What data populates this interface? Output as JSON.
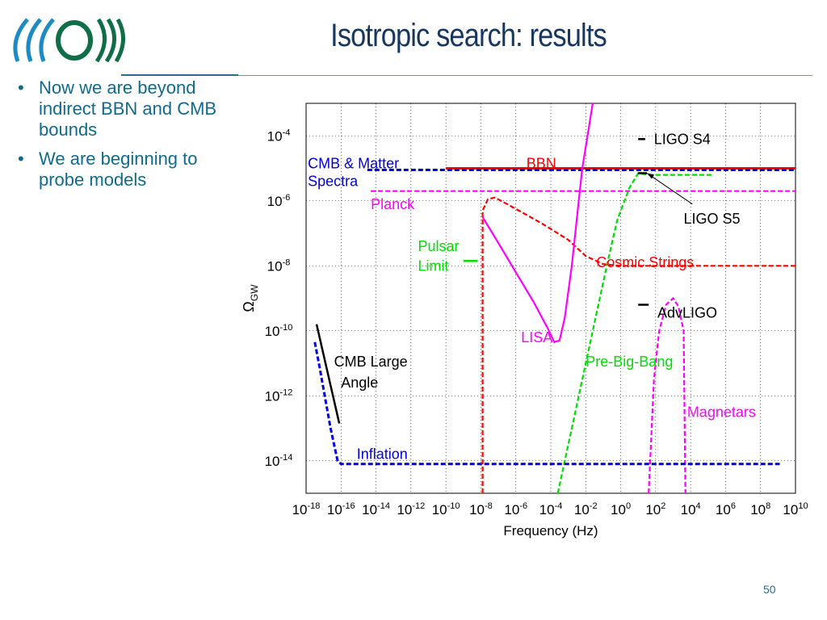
{
  "slide": {
    "title": "Isotropic search: results",
    "page_number": "50",
    "bullets": [
      "Now we are beyond indirect BBN and CMB bounds",
      "We are beginning to probe models"
    ]
  },
  "colors": {
    "title": "#17375e",
    "bullet_text": "#0f6a8d",
    "red": "#ff0000",
    "blue": "#0000dd",
    "magenta": "#ff00ff",
    "green": "#00dd00",
    "black": "#000000"
  },
  "chart_data": {
    "type": "line",
    "title": "",
    "xlabel": "Frequency (Hz)",
    "ylabel": "Ω_GW",
    "x_scale": "log10",
    "y_scale": "log10",
    "xlim_log10": [
      -18,
      10
    ],
    "ylim_log10": [
      -15,
      -3
    ],
    "grid": true,
    "x_ticks_log10": [
      -18,
      -16,
      -14,
      -12,
      -10,
      -8,
      -6,
      -4,
      -2,
      0,
      2,
      4,
      6,
      8,
      10
    ],
    "y_ticks_log10": [
      -14,
      -12,
      -10,
      -8,
      -6,
      -4
    ],
    "series": [
      {
        "name": "BBN",
        "color": "#ff0000",
        "style": "solid",
        "points": [
          [
            -10,
            -5.0
          ],
          [
            10,
            -5.0
          ]
        ]
      },
      {
        "name": "CMB & Matter Spectra",
        "color": "#0000dd",
        "style": "dashed",
        "points": [
          [
            -14.5,
            -5.05
          ],
          [
            10,
            -5.05
          ]
        ]
      },
      {
        "name": "Planck",
        "color": "#ff00ff",
        "style": "dashed",
        "points": [
          [
            -14.3,
            -5.7
          ],
          [
            10,
            -5.7
          ]
        ]
      },
      {
        "name": "Cosmic Strings",
        "color": "#ff0000",
        "style": "dashed",
        "points": [
          [
            -7.9,
            -15
          ],
          [
            -7.9,
            -6.3
          ],
          [
            -7.6,
            -5.95
          ],
          [
            -7.2,
            -5.9
          ],
          [
            -6.5,
            -6.1
          ],
          [
            -4.5,
            -6.7
          ],
          [
            -3.0,
            -7.2
          ],
          [
            -2.0,
            -7.7
          ],
          [
            -1.0,
            -7.95
          ],
          [
            0,
            -8.0
          ],
          [
            10,
            -8.0
          ]
        ]
      },
      {
        "name": "LISA",
        "color": "#ff00ff",
        "style": "solid",
        "points": [
          [
            -7.9,
            -6.5
          ],
          [
            -7.0,
            -7.3
          ],
          [
            -6.0,
            -8.2
          ],
          [
            -5.0,
            -9.1
          ],
          [
            -4.2,
            -9.9
          ],
          [
            -3.8,
            -10.35
          ],
          [
            -3.5,
            -10.3
          ],
          [
            -3.2,
            -9.6
          ],
          [
            -2.8,
            -8.0
          ],
          [
            -2.4,
            -6.0
          ],
          [
            -2.2,
            -5.0
          ],
          [
            -1.9,
            -4.0
          ],
          [
            -1.6,
            -3.0
          ]
        ]
      },
      {
        "name": "Pre-Big-Bang",
        "color": "#00dd00",
        "style": "dashed",
        "points": [
          [
            -3.6,
            -15
          ],
          [
            -2.0,
            -11.0
          ],
          [
            -0.8,
            -8.0
          ],
          [
            -0.2,
            -6.6
          ],
          [
            0.5,
            -5.6
          ],
          [
            1.0,
            -5.15
          ],
          [
            1.6,
            -5.2
          ],
          [
            2.2,
            -5.2
          ],
          [
            5.3,
            -5.2
          ]
        ]
      },
      {
        "name": "AdvLIGO",
        "color": "#ff00ff",
        "style": "dashed",
        "points": [
          [
            1.6,
            -15
          ],
          [
            1.9,
            -11.5
          ],
          [
            2.2,
            -10.0
          ],
          [
            2.6,
            -9.2
          ],
          [
            3.0,
            -9.0
          ],
          [
            3.3,
            -9.25
          ],
          [
            3.6,
            -10.0
          ],
          [
            3.7,
            -15
          ]
        ]
      },
      {
        "name": "CMB Large Angle",
        "color": "#0000dd",
        "style": "dashed",
        "points": [
          [
            -17.5,
            -10.35
          ],
          [
            -17.2,
            -11.2
          ],
          [
            -16.6,
            -13.0
          ],
          [
            -16.2,
            -14.0
          ],
          [
            -16.0,
            -14.1
          ],
          [
            9.1,
            -14.1
          ]
        ]
      },
      {
        "name": "CMB Large Angle bound",
        "color": "#000000",
        "style": "solid",
        "points": [
          [
            -17.4,
            -9.8
          ],
          [
            -16.1,
            -12.85
          ]
        ]
      },
      {
        "name": "LIGO S4 marker",
        "color": "#000000",
        "style": "solid",
        "points": [
          [
            1.0,
            -4.1
          ],
          [
            1.4,
            -4.1
          ]
        ]
      },
      {
        "name": "LIGO S5 marker",
        "color": "#000000",
        "style": "solid",
        "points": [
          [
            1.0,
            -5.15
          ],
          [
            1.5,
            -5.15
          ]
        ]
      },
      {
        "name": "AdvLIGO marker",
        "color": "#000000",
        "style": "solid",
        "points": [
          [
            1.0,
            -9.2
          ],
          [
            1.6,
            -9.2
          ]
        ]
      },
      {
        "name": "Pulsar Limit marker",
        "color": "#00dd00",
        "style": "solid",
        "points": [
          [
            -9.0,
            -7.85
          ],
          [
            -8.2,
            -7.85
          ]
        ]
      }
    ],
    "annotations": [
      {
        "text": "LIGO S4",
        "color": "#000000",
        "x": 1.9,
        "y": -4.1
      },
      {
        "text": "BBN",
        "color": "#ff0000",
        "x": -5.4,
        "y": -4.85
      },
      {
        "text": "CMB & Matter",
        "color": "#0000dd",
        "x": -17.9,
        "y": -4.85
      },
      {
        "text": "Spectra",
        "color": "#0000dd",
        "x": -17.9,
        "y": -5.4
      },
      {
        "text": "Planck",
        "color": "#ff00ff",
        "x": -14.3,
        "y": -6.1
      },
      {
        "text": "LIGO S5",
        "color": "#000000",
        "x": 3.6,
        "y": -6.55
      },
      {
        "text": "Pulsar",
        "color": "#00dd00",
        "x": -11.6,
        "y": -7.4
      },
      {
        "text": "Limit",
        "color": "#00dd00",
        "x": -11.6,
        "y": -8.0
      },
      {
        "text": "Cosmic   Strings",
        "color": "#ff0000",
        "x": -1.4,
        "y": -7.9
      },
      {
        "text": "AdvLIGO",
        "color": "#000000",
        "x": 2.1,
        "y": -9.45
      },
      {
        "text": "LISA",
        "color": "#ff00ff",
        "x": -5.7,
        "y": -10.2
      },
      {
        "text": "Pre-Big-Bang",
        "color": "#00dd00",
        "x": -2.0,
        "y": -10.95
      },
      {
        "text": "CMB Large",
        "color": "#000000",
        "x": -16.4,
        "y": -10.95
      },
      {
        "text": "Angle",
        "color": "#000000",
        "x": -16.0,
        "y": -11.6
      },
      {
        "text": "Magnetars",
        "color": "#ff00ff",
        "x": 3.8,
        "y": -12.5
      },
      {
        "text": "Inflation",
        "color": "#0000dd",
        "x": -15.1,
        "y": -13.8
      }
    ],
    "arrow": {
      "from": [
        4.1,
        -6.1
      ],
      "to": [
        1.5,
        -5.15
      ],
      "color": "#000000"
    }
  }
}
